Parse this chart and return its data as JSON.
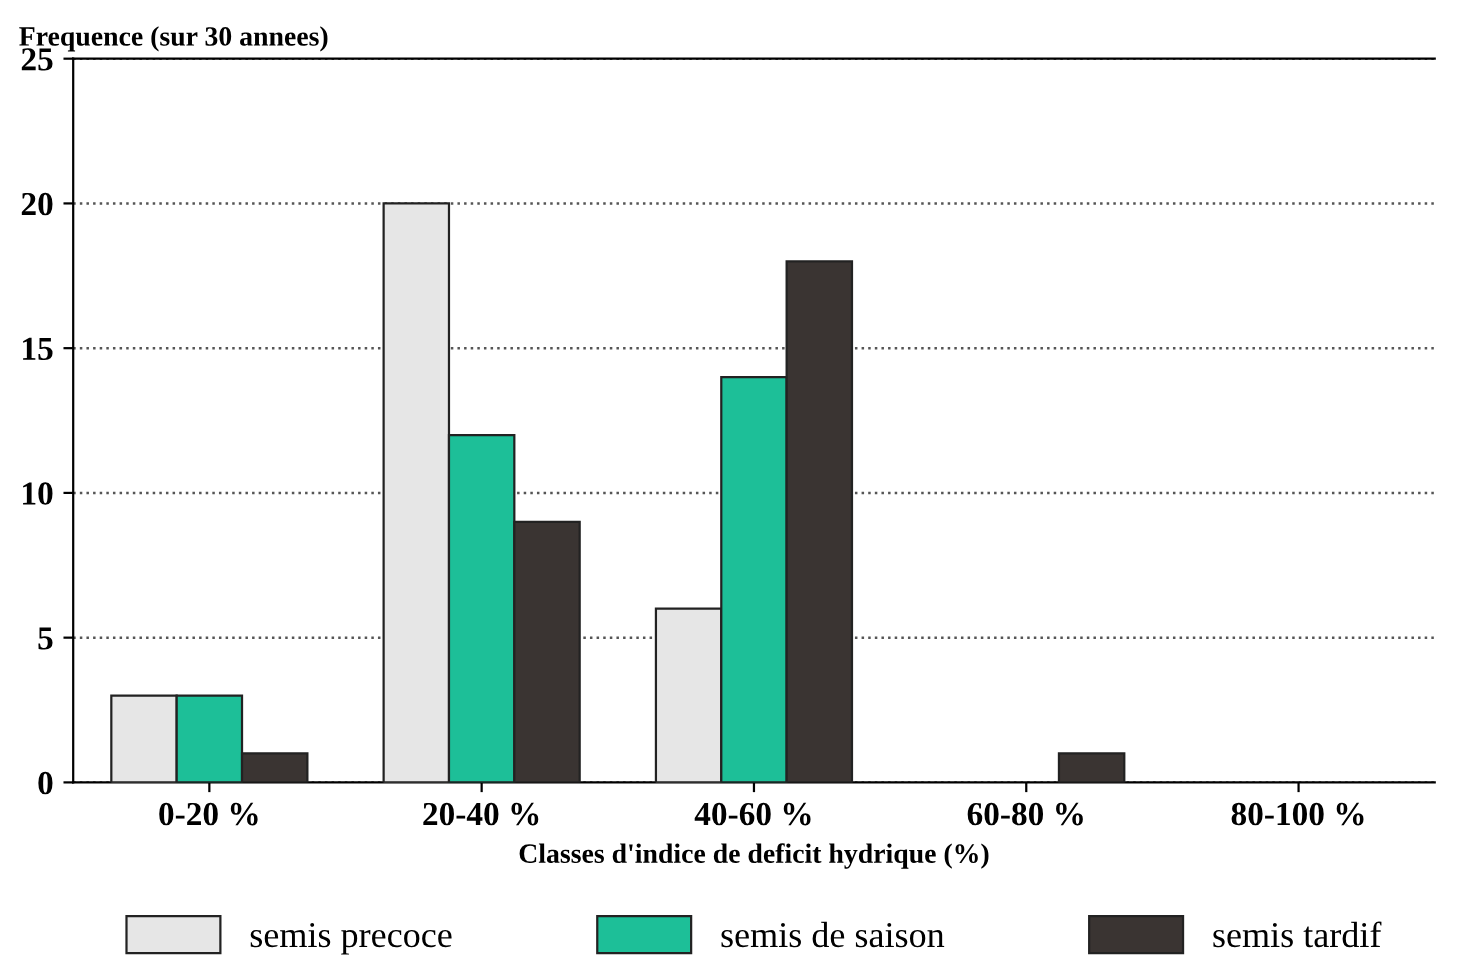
{
  "chart_data": {
    "type": "bar",
    "ylabel": "Frequence (sur 30 annees)",
    "xlabel": "Classes d'indice de deficit hydrique (%)",
    "categories": [
      "0-20 %",
      "20-40 %",
      "40-60 %",
      "60-80 %",
      "80-100 %"
    ],
    "series": [
      {
        "name": "semis precoce",
        "color": "#e6e6e6",
        "values": [
          3,
          20,
          6,
          0,
          0
        ]
      },
      {
        "name": "semis de saison",
        "color": "#1dbf98",
        "values": [
          3,
          12,
          14,
          0,
          0
        ]
      },
      {
        "name": "semis tardif",
        "color": "#3a3432",
        "values": [
          1,
          9,
          18,
          1,
          0
        ]
      }
    ],
    "ylim": [
      0,
      25
    ],
    "yticks": [
      0,
      5,
      10,
      15,
      20,
      25
    ],
    "grid": "y",
    "legend": "bottom"
  }
}
